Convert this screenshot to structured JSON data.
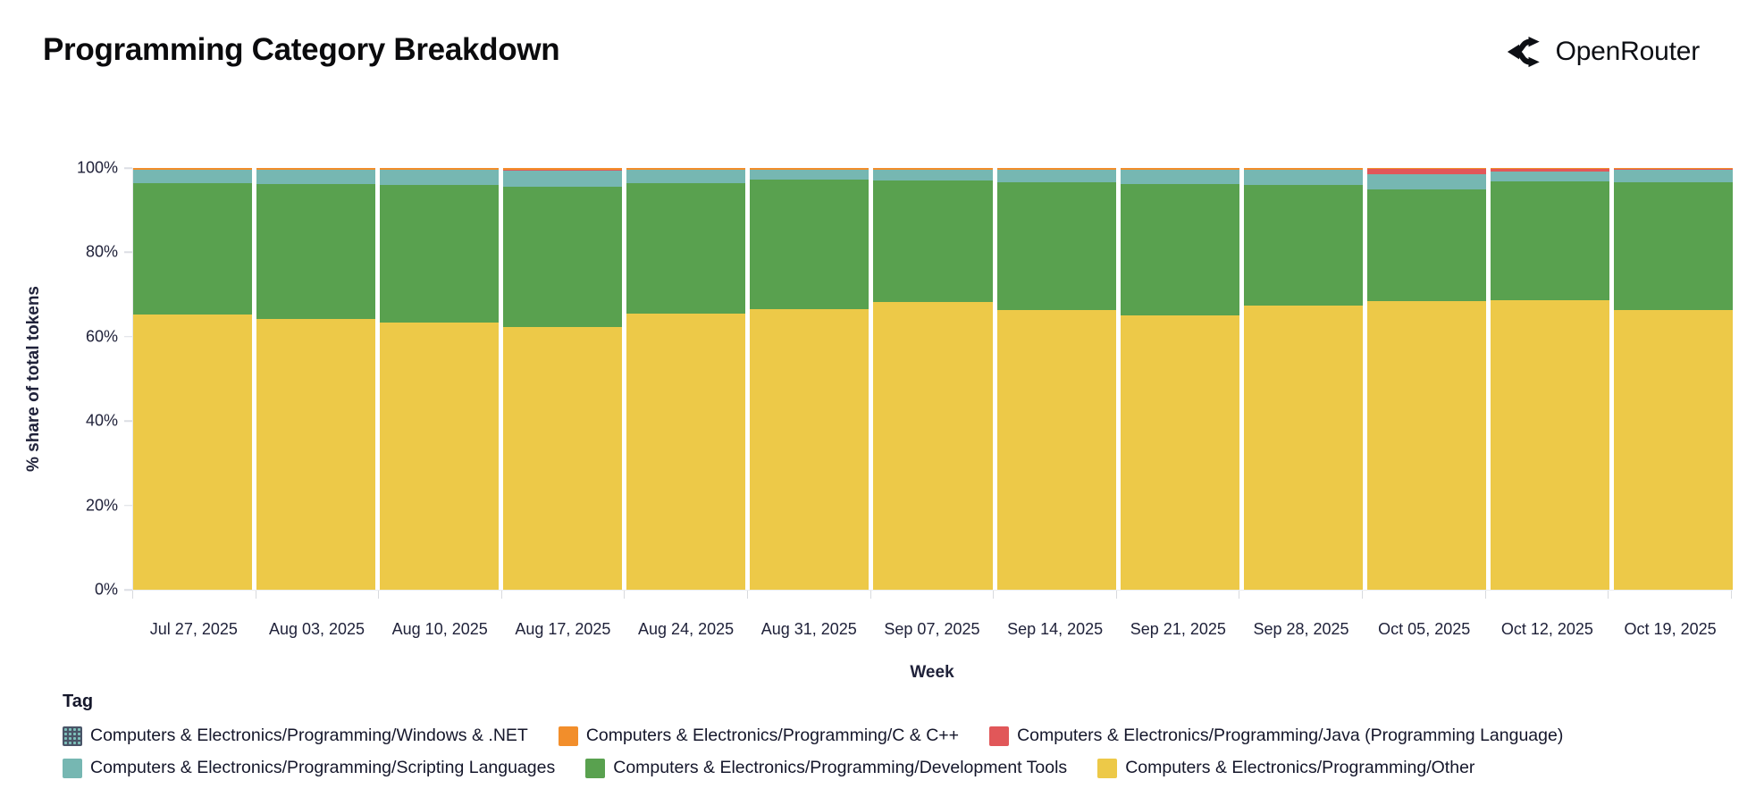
{
  "header": {
    "title": "Programming Category Breakdown",
    "brand": "OpenRouter"
  },
  "axes": {
    "y_title": "% share of total tokens",
    "x_title": "Week",
    "y_ticks": [
      "0%",
      "20%",
      "40%",
      "60%",
      "80%",
      "100%"
    ]
  },
  "legend": {
    "title": "Tag",
    "items": [
      {
        "label": "Computers & Electronics/Programming/Windows & .NET",
        "color": "#4a5568",
        "pattern": "dots"
      },
      {
        "label": "Computers & Electronics/Programming/C & C++",
        "color": "#f28e2b"
      },
      {
        "label": "Computers & Electronics/Programming/Java (Programming Language)",
        "color": "#e15759"
      },
      {
        "label": "Computers & Electronics/Programming/Scripting Languages",
        "color": "#76b7b2"
      },
      {
        "label": "Computers & Electronics/Programming/Development Tools",
        "color": "#59a14f"
      },
      {
        "label": "Computers & Electronics/Programming/Other",
        "color": "#edc948"
      }
    ]
  },
  "chart_data": {
    "type": "bar",
    "stacked": true,
    "unit": "percent of total tokens",
    "title": "Programming Category Breakdown",
    "xlabel": "Week",
    "ylabel": "% share of total tokens",
    "ylim": [
      0,
      100
    ],
    "grid": false,
    "legend_position": "bottom",
    "stack_order": "bottom-to-top",
    "categories": [
      "Jul 27, 2025",
      "Aug 03, 2025",
      "Aug 10, 2025",
      "Aug 17, 2025",
      "Aug 24, 2025",
      "Aug 31, 2025",
      "Sep 07, 2025",
      "Sep 14, 2025",
      "Sep 21, 2025",
      "Sep 28, 2025",
      "Oct 05, 2025",
      "Oct 12, 2025",
      "Oct 19, 2025"
    ],
    "series": [
      {
        "name": "Computers & Electronics/Programming/Other",
        "color": "#edc948",
        "values": [
          65.3,
          64.3,
          63.4,
          62.3,
          65.5,
          66.6,
          68.3,
          66.4,
          65.1,
          67.4,
          68.5,
          68.7,
          66.4
        ]
      },
      {
        "name": "Computers & Electronics/Programming/Development Tools",
        "color": "#59a14f",
        "values": [
          31.1,
          31.9,
          32.6,
          33.2,
          30.9,
          30.6,
          28.7,
          30.2,
          31.1,
          28.6,
          26.4,
          28.1,
          30.2
        ]
      },
      {
        "name": "Computers & Electronics/Programming/Scripting Languages",
        "color": "#76b7b2",
        "values": [
          3.1,
          3.3,
          3.5,
          3.9,
          3.1,
          2.3,
          2.5,
          2.9,
          3.3,
          3.5,
          3.6,
          2.3,
          3.0
        ]
      },
      {
        "name": "Computers & Electronics/Programming/Java (Programming Language)",
        "color": "#e15759",
        "values": [
          0.1,
          0.1,
          0.1,
          0.1,
          0.1,
          0.1,
          0.1,
          0.1,
          0.1,
          0.1,
          1.2,
          0.8,
          0.1
        ]
      },
      {
        "name": "Computers & Electronics/Programming/C & C++",
        "color": "#f28e2b",
        "values": [
          0.35,
          0.35,
          0.35,
          0.45,
          0.35,
          0.35,
          0.35,
          0.35,
          0.35,
          0.35,
          0.25,
          0.05,
          0.25
        ]
      },
      {
        "name": "Computers & Electronics/Programming/Windows & .NET",
        "color": "#4a5568",
        "values": [
          0.05,
          0.05,
          0.05,
          0.05,
          0.05,
          0.05,
          0.05,
          0.05,
          0.05,
          0.05,
          0.05,
          0.05,
          0.05
        ]
      }
    ]
  }
}
